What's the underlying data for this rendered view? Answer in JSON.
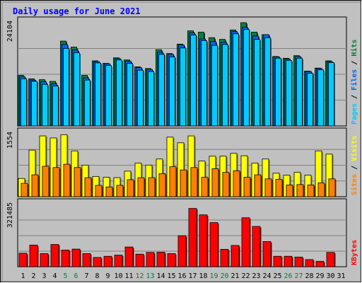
{
  "chart_data": {
    "type": "bar",
    "title": "Daily usage for June 2021",
    "categories": [
      "1",
      "2",
      "3",
      "4",
      "5",
      "6",
      "7",
      "8",
      "9",
      "10",
      "11",
      "12",
      "13",
      "14",
      "15",
      "16",
      "17",
      "18",
      "19",
      "20",
      "21",
      "22",
      "23",
      "24",
      "25",
      "26",
      "27",
      "28",
      "29",
      "30",
      "31"
    ],
    "weekend_days": [
      "5",
      "6",
      "12",
      "13",
      "19",
      "20",
      "26",
      "27"
    ],
    "panels": [
      {
        "id": "top",
        "max_label": "24104",
        "ylim": [
          0,
          24104
        ],
        "right_label_parts": [
          {
            "text": "Pages",
            "color": "#00ccff"
          },
          {
            "text": " / ",
            "color": "#000000"
          },
          {
            "text": "Files",
            "color": "#0066ff"
          },
          {
            "text": " / ",
            "color": "#000000"
          },
          {
            "text": "Hits",
            "color": "#008040"
          }
        ],
        "series": [
          {
            "name": "Hits",
            "color": "#008040",
            "values": [
              11800,
              11000,
              10800,
              10400,
              19800,
              18400,
              11800,
              15200,
              14600,
              15900,
              15400,
              13800,
              13400,
              17800,
              16900,
              19100,
              22200,
              21900,
              20600,
              20200,
              22400,
              24104,
              21900,
              21300,
              16200,
              15800,
              16400,
              12800,
              13500,
              15200,
              null
            ]
          },
          {
            "name": "Files",
            "color": "#0066ff",
            "values": [
              11500,
              10700,
              10300,
              9800,
              19000,
              17700,
              11200,
              15000,
              14500,
              15700,
              15100,
              13600,
              13200,
              17200,
              16700,
              18900,
              21700,
              20300,
              19700,
              19500,
              22000,
              23000,
              21000,
              21300,
              16100,
              15600,
              16200,
              12700,
              13400,
              15000,
              null
            ]
          },
          {
            "name": "Pages",
            "color": "#00ccff",
            "values": [
              11000,
              10400,
              9700,
              9300,
              18100,
              17100,
              10700,
              14700,
              14100,
              15400,
              14600,
              13000,
              12700,
              16700,
              16100,
              18200,
              21200,
              19900,
              18800,
              19000,
              21500,
              22500,
              20200,
              20600,
              15800,
              15300,
              15800,
              12300,
              13100,
              14800,
              null
            ]
          }
        ]
      },
      {
        "id": "middle",
        "max_label": "1554",
        "ylim": [
          0,
          1554
        ],
        "right_label_parts": [
          {
            "text": "Sites",
            "color": "#ff8000"
          },
          {
            "text": " / ",
            "color": "#000000"
          },
          {
            "text": "Visits",
            "color": "#ffff00"
          }
        ],
        "series": [
          {
            "name": "Visits",
            "color": "#ffff00",
            "values": [
              450,
              1150,
              1500,
              1450,
              1530,
              1130,
              780,
              500,
              480,
              470,
              630,
              830,
              780,
              930,
              1470,
              1330,
              1500,
              880,
              1000,
              1000,
              1070,
              1010,
              830,
              930,
              580,
              530,
              600,
              530,
              1130,
              1050,
              null
            ]
          },
          {
            "name": "Sites",
            "color": "#ff8000",
            "values": [
              330,
              540,
              750,
              720,
              800,
              720,
              470,
              280,
              240,
              280,
              420,
              470,
              470,
              570,
              740,
              660,
              720,
              480,
              690,
              600,
              640,
              480,
              540,
              440,
              430,
              290,
              300,
              290,
              340,
              440,
              null
            ]
          }
        ]
      },
      {
        "id": "bottom",
        "max_label": "321485",
        "ylim": [
          0,
          321485
        ],
        "right_label_parts": [
          {
            "text": "KBytes",
            "color": "#ff0000"
          }
        ],
        "series": [
          {
            "name": "KBytes",
            "color": "#ff0000",
            "values": [
              70000,
              112000,
              68000,
              115000,
              86000,
              91000,
              68000,
              48000,
              54000,
              60000,
              102000,
              65000,
              74000,
              75000,
              68000,
              160000,
              301000,
              268000,
              228000,
              90000,
              110000,
              253000,
              208000,
              130000,
              54000,
              54000,
              50000,
              37000,
              28000,
              74000,
              null
            ]
          }
        ]
      }
    ]
  }
}
